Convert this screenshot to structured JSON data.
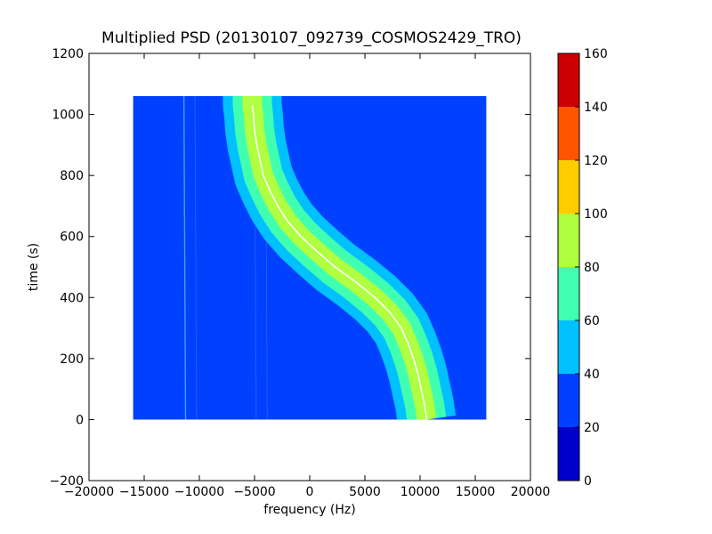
{
  "chart_data": {
    "type": "heatmap",
    "title": "Multiplied PSD (20130107_092739_COSMOS2429_TRO)",
    "xlabel": "frequency (Hz)",
    "ylabel": "time (s)",
    "xlim": [
      -20000,
      20000
    ],
    "ylim": [
      -200,
      1200
    ],
    "x_ticks": [
      -20000,
      -15000,
      -10000,
      -5000,
      0,
      5000,
      10000,
      15000,
      20000
    ],
    "y_ticks": [
      -200,
      0,
      200,
      400,
      600,
      800,
      1000,
      1200
    ],
    "x_tick_labels": [
      "−20000",
      "−15000",
      "−10000",
      "−5000",
      "0",
      "5000",
      "10000",
      "15000",
      "20000"
    ],
    "y_tick_labels": [
      "−200",
      "0",
      "200",
      "400",
      "600",
      "800",
      "1000",
      "1200"
    ],
    "data_extent": {
      "x": [
        -16000,
        16000
      ],
      "y": [
        0,
        1060
      ]
    },
    "signal_track": {
      "time": [
        0,
        50,
        100,
        150,
        200,
        250,
        300,
        350,
        400,
        450,
        500,
        550,
        600,
        650,
        700,
        750,
        800,
        850,
        900,
        950,
        1000,
        1030
      ],
      "frequency": [
        10600,
        10400,
        10100,
        9800,
        9400,
        8900,
        8300,
        7300,
        5900,
        4200,
        2300,
        700,
        -800,
        -2000,
        -2900,
        -3600,
        -4200,
        -4500,
        -4800,
        -5000,
        -5100,
        -5200
      ]
    },
    "colorbar": {
      "ticks": [
        0,
        20,
        40,
        60,
        80,
        100,
        120,
        140,
        160
      ],
      "tick_labels": [
        "0",
        "20",
        "40",
        "60",
        "80",
        "100",
        "120",
        "140",
        "160"
      ],
      "colors": [
        "#0000cc",
        "#0040ff",
        "#00c0ff",
        "#40ffb0",
        "#b0ff40",
        "#ffcc00",
        "#ff5500",
        "#cc0000"
      ]
    },
    "background_level_color": "#0040ff",
    "band_colors": {
      "outer": "#00c0ff",
      "middle": "#40ffb0",
      "inner": "#b0ff40"
    },
    "track_color": "#ffffff",
    "grid": false,
    "legend": "none"
  }
}
